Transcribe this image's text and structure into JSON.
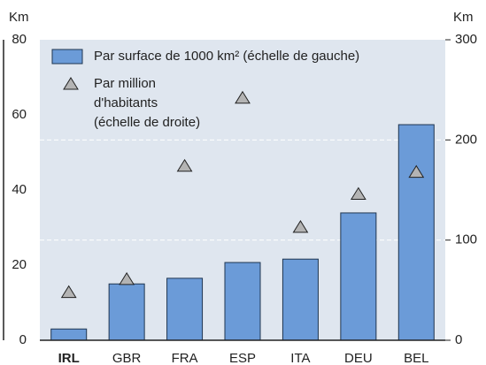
{
  "chart_data": {
    "type": "bar_and_marker",
    "categories": [
      "IRL",
      "GBR",
      "FRA",
      "ESP",
      "ITA",
      "DEU",
      "BEL"
    ],
    "series": [
      {
        "name": "Par surface de 1000 km² (échelle de gauche)",
        "color": "#6b9bd8",
        "values": [
          3,
          15,
          16.5,
          20.7,
          21.6,
          33.9,
          57.4
        ]
      },
      {
        "name": [
          "Par million",
          "d'habitants",
          "(échelle de droite)"
        ],
        "color": "#b4b4b4",
        "axis": "y2",
        "values": [
          48,
          61,
          174,
          242,
          113,
          146,
          168
        ]
      }
    ],
    "ylabel": "Km",
    "y2label": "Km",
    "ylim": [
      0,
      80
    ],
    "yticks": [
      0,
      20,
      40,
      60,
      80
    ],
    "y2lim": [
      0,
      300
    ],
    "y2ticks": [
      0,
      100,
      200,
      300
    ],
    "grid": "y2"
  }
}
